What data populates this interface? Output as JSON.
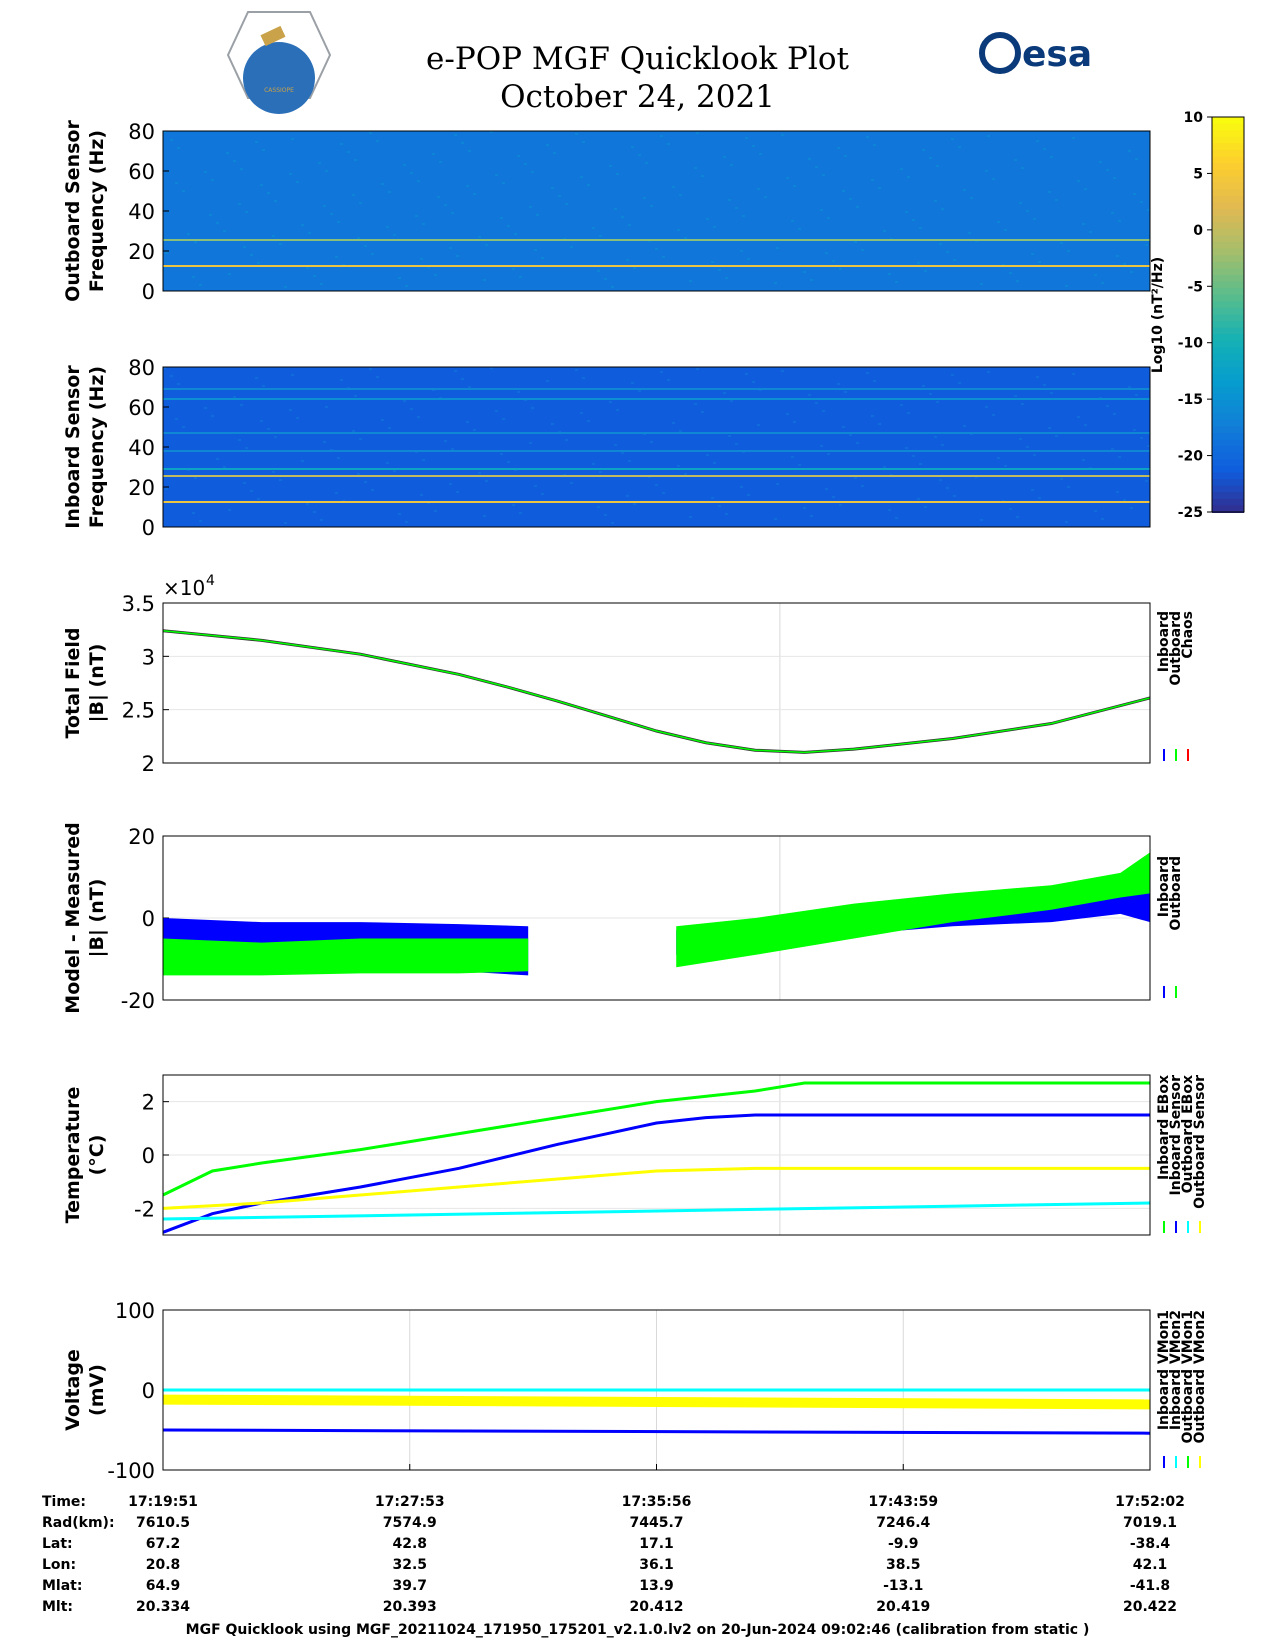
{
  "header": {
    "title_line1": "e-POP MGF Quicklook Plot",
    "title_line2": "October 24, 2021",
    "left_logo_text": "CASSIOPE",
    "right_logo_text": "esa"
  },
  "colorbar": {
    "label": "Log10 (nT²/Hz)",
    "ticks": [
      10,
      5,
      0,
      -5,
      -10,
      -15,
      -20,
      -25
    ],
    "range": [
      -25,
      10
    ]
  },
  "chart_data": [
    {
      "type": "heatmap",
      "ylabel_line1": "Outboard Sensor",
      "ylabel_line2": "Frequency (Hz)",
      "ylim": [
        0,
        80
      ],
      "yticks": [
        0,
        20,
        40,
        60,
        80
      ],
      "background_level": -18,
      "lines": [
        {
          "freq": 12.5,
          "level": 4
        },
        {
          "freq": 25.5,
          "level": -3
        }
      ]
    },
    {
      "type": "heatmap",
      "ylabel_line1": "Inboard Sensor",
      "ylabel_line2": "Frequency (Hz)",
      "ylim": [
        0,
        80
      ],
      "yticks": [
        0,
        20,
        40,
        60,
        80
      ],
      "background_level": -21,
      "lines": [
        {
          "freq": 12.5,
          "level": 4
        },
        {
          "freq": 25.5,
          "level": 0
        },
        {
          "freq": 29,
          "level": -12
        },
        {
          "freq": 38,
          "level": -16
        },
        {
          "freq": 47,
          "level": -16
        },
        {
          "freq": 64,
          "level": -15
        },
        {
          "freq": 69,
          "level": -16
        }
      ]
    },
    {
      "type": "line",
      "ylabel_line1": "Total Field",
      "ylabel_line2": "|B| (nT)",
      "exponent_label": "×10",
      "exponent_power": "4",
      "ylim": [
        2,
        3.5
      ],
      "yticks": [
        2,
        2.5,
        3,
        3.5
      ],
      "legend": [
        "Inboard",
        "Outboard",
        "Chaos"
      ],
      "legend_colors": [
        "#0000ff",
        "#00ff00",
        "#ff0000"
      ],
      "series": [
        {
          "name": "Outboard",
          "color": "#00ff00",
          "x": [
            0,
            0.1,
            0.2,
            0.3,
            0.35,
            0.4,
            0.45,
            0.5,
            0.55,
            0.6,
            0.65,
            0.7,
            0.8,
            0.9,
            1.0
          ],
          "y": [
            3.24,
            3.15,
            3.02,
            2.83,
            2.71,
            2.58,
            2.44,
            2.3,
            2.19,
            2.12,
            2.1,
            2.13,
            2.23,
            2.37,
            2.61
          ]
        }
      ]
    },
    {
      "type": "area",
      "ylabel_line1": "Model - Measured",
      "ylabel_line2": "|B| (nT)",
      "ylim": [
        -20,
        20
      ],
      "yticks": [
        -20,
        0,
        20
      ],
      "legend": [
        "Inboard",
        "Outboard"
      ],
      "legend_colors": [
        "#0000ff",
        "#00ff00"
      ],
      "series": [
        {
          "name": "Inboard",
          "color": "#0000ff",
          "segments": [
            {
              "x": [
                0,
                0.1,
                0.2,
                0.3,
                0.37
              ],
              "upper": [
                0,
                -1,
                -1,
                -1.5,
                -2
              ],
              "lower": [
                -12,
                -13,
                -12.5,
                -13,
                -14
              ]
            },
            {
              "x": [
                0.52,
                0.6,
                0.7,
                0.8,
                0.9,
                0.97,
                1.0
              ],
              "upper": [
                -3,
                -2,
                1,
                2.5,
                4,
                6,
                9
              ],
              "lower": [
                -9,
                -7,
                -4,
                -2,
                -1,
                1,
                -1
              ]
            }
          ]
        },
        {
          "name": "Outboard",
          "color": "#00ff00",
          "segments": [
            {
              "x": [
                0,
                0.1,
                0.2,
                0.3,
                0.37
              ],
              "upper": [
                -5,
                -6,
                -5,
                -5,
                -5
              ],
              "lower": [
                -14,
                -14,
                -13.5,
                -13.5,
                -13
              ]
            },
            {
              "x": [
                0.52,
                0.6,
                0.7,
                0.8,
                0.9,
                0.97,
                1.0
              ],
              "upper": [
                -2,
                0,
                3.5,
                6,
                8,
                11,
                16
              ],
              "lower": [
                -12,
                -9,
                -5,
                -1,
                2,
                5,
                6
              ]
            }
          ]
        }
      ]
    },
    {
      "type": "line",
      "ylabel_line1": "Temperature",
      "ylabel_line2": "(°C)",
      "ylim": [
        -3,
        3
      ],
      "yticks": [
        -2,
        0,
        2
      ],
      "legend": [
        "Inboard EBox",
        "Inboard Sensor",
        "Outboard EBox",
        "Outboard Sensor"
      ],
      "legend_colors": [
        "#00ff00",
        "#0000ff",
        "#00ffff",
        "#ffff00"
      ],
      "series": [
        {
          "name": "Inboard EBox",
          "color": "#00ff00",
          "x": [
            0,
            0.05,
            0.1,
            0.2,
            0.3,
            0.4,
            0.5,
            0.6,
            0.65,
            1.0
          ],
          "y": [
            -1.5,
            -0.6,
            -0.3,
            0.2,
            0.8,
            1.4,
            2.0,
            2.4,
            2.7,
            2.7
          ]
        },
        {
          "name": "Inboard Sensor",
          "color": "#0000ff",
          "x": [
            0,
            0.05,
            0.1,
            0.2,
            0.3,
            0.4,
            0.45,
            0.5,
            0.55,
            0.6,
            1.0
          ],
          "y": [
            -2.9,
            -2.2,
            -1.8,
            -1.2,
            -0.5,
            0.4,
            0.8,
            1.2,
            1.4,
            1.5,
            1.5
          ]
        },
        {
          "name": "Outboard EBox",
          "color": "#00ffff",
          "x": [
            0,
            1.0
          ],
          "y": [
            -2.4,
            -1.8
          ]
        },
        {
          "name": "Outboard Sensor",
          "color": "#ffff00",
          "x": [
            0,
            0.1,
            0.2,
            0.3,
            0.4,
            0.5,
            0.6,
            1.0
          ],
          "y": [
            -2.0,
            -1.8,
            -1.5,
            -1.2,
            -0.9,
            -0.6,
            -0.5,
            -0.5
          ]
        }
      ]
    },
    {
      "type": "line",
      "ylabel_line1": "Voltage",
      "ylabel_line2": "(mV)",
      "ylim": [
        -100,
        100
      ],
      "yticks": [
        -100,
        0,
        100
      ],
      "legend": [
        "Inboard VMon1",
        "Inboard VMon2",
        "Outboard VMon1",
        "Outboard VMon2"
      ],
      "legend_colors": [
        "#0000ff",
        "#00ffff",
        "#00ff00",
        "#ffff00"
      ],
      "series": [
        {
          "name": "Inboard VMon1",
          "color": "#0000ff",
          "x": [
            0,
            1.0
          ],
          "y": [
            -50,
            -54
          ]
        },
        {
          "name": "Inboard VMon2",
          "color": "#00ffff",
          "x": [
            0,
            1.0
          ],
          "y": [
            0,
            0
          ]
        },
        {
          "name": "Outboard VMon1",
          "color": "#00ff00",
          "x": [
            0,
            1.0
          ],
          "y": [
            -15,
            -15
          ]
        },
        {
          "name": "Outboard VMon2",
          "color": "#ffff00",
          "x": [
            0,
            1.0
          ],
          "y": [
            -12,
            -18
          ]
        }
      ]
    }
  ],
  "ephemeris": {
    "row_labels": [
      "Time:",
      "Rad(km):",
      "Lat:",
      "Lon:",
      "Mlat:",
      "Mlt:"
    ],
    "columns": [
      [
        "17:19:51",
        "7610.5",
        "67.2",
        "20.8",
        "64.9",
        "20.334"
      ],
      [
        "17:27:53",
        "7574.9",
        "42.8",
        "32.5",
        "39.7",
        "20.393"
      ],
      [
        "17:35:56",
        "7445.7",
        "17.1",
        "36.1",
        "13.9",
        "20.412"
      ],
      [
        "17:43:59",
        "7246.4",
        "-9.9",
        "38.5",
        "-13.1",
        "20.419"
      ],
      [
        "17:52:02",
        "7019.1",
        "-38.4",
        "42.1",
        "-41.8",
        "20.422"
      ]
    ]
  },
  "footer": {
    "text": "MGF Quicklook using MGF_20211024_171950_175201_v2.1.0.lv2 on 20-Jun-2024 09:02:46 (calibration from static )"
  }
}
